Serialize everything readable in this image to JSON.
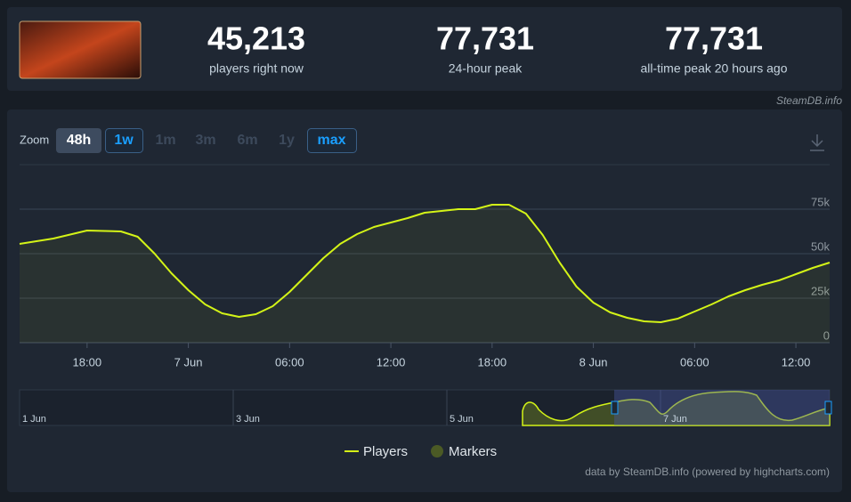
{
  "header": {
    "stats": [
      {
        "value": "45,213",
        "label": "players right now"
      },
      {
        "value": "77,731",
        "label": "24-hour peak"
      },
      {
        "value": "77,731",
        "label": "all-time peak 20 hours ago"
      }
    ],
    "source": "SteamDB.info"
  },
  "zoom": {
    "label": "Zoom",
    "options": [
      "48h",
      "1w",
      "1m",
      "3m",
      "6m",
      "1y",
      "max"
    ]
  },
  "chart_data": {
    "type": "line",
    "x": [
      14,
      16,
      18,
      20,
      21,
      22,
      23,
      24,
      25,
      26,
      27,
      28,
      29,
      30,
      31,
      32,
      33,
      34,
      35,
      36,
      37,
      38,
      39,
      40,
      41,
      42,
      43,
      44,
      45,
      46,
      47,
      48,
      49,
      50,
      51,
      52,
      53,
      54,
      55,
      56,
      57,
      58,
      59,
      60,
      61,
      62
    ],
    "series": [
      {
        "name": "Players",
        "color": "#d4f417",
        "values": [
          55500,
          58500,
          63000,
          62500,
          59500,
          50000,
          39000,
          29500,
          21500,
          16500,
          14500,
          16000,
          20500,
          28500,
          38000,
          47500,
          55500,
          61000,
          65000,
          67500,
          70000,
          73000,
          74000,
          75000,
          75000,
          77500,
          77500,
          72500,
          60500,
          45000,
          31500,
          22500,
          17000,
          14000,
          12000,
          11500,
          13500,
          17500,
          21500,
          26000,
          29500,
          32500,
          35000,
          38500,
          42000,
          45000
        ]
      }
    ],
    "markers_label": "Markers",
    "xlim": [
      14,
      62
    ],
    "xticks": [
      {
        "value": 18,
        "label": "18:00"
      },
      {
        "value": 24,
        "label": "7 Jun"
      },
      {
        "value": 30,
        "label": "06:00"
      },
      {
        "value": 36,
        "label": "12:00"
      },
      {
        "value": 42,
        "label": "18:00"
      },
      {
        "value": 48,
        "label": "8 Jun"
      },
      {
        "value": 54,
        "label": "06:00"
      },
      {
        "value": 60,
        "label": "12:00"
      }
    ],
    "ylim": [
      0,
      100000
    ],
    "yticks": [
      0,
      {
        "value": 25000,
        "label": "25k"
      },
      {
        "value": 50000,
        "label": "50k"
      },
      {
        "value": 75000,
        "label": "75k"
      }
    ],
    "grid": true
  },
  "navigator": {
    "labels": [
      "1 Jun",
      "3 Jun",
      "5 Jun",
      "7 Jun"
    ]
  },
  "credits": "data by SteamDB.info (powered by highcharts.com)"
}
